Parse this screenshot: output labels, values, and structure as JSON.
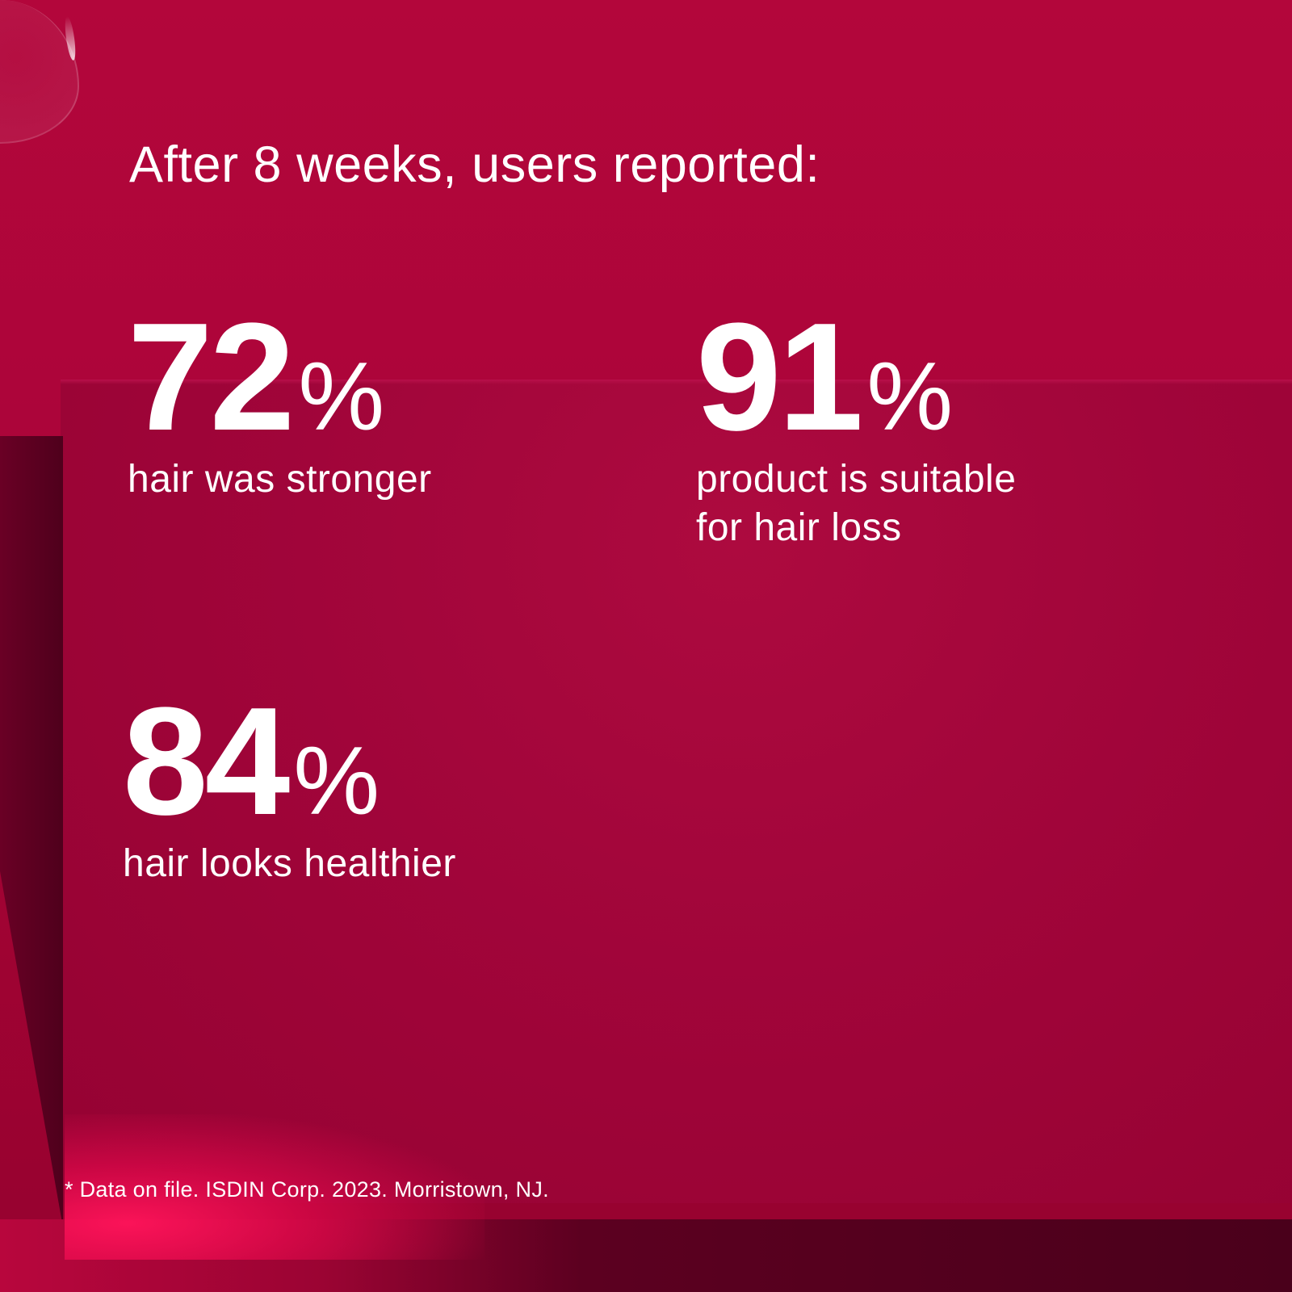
{
  "headline": "After 8 weeks, users reported:",
  "stats": [
    {
      "value": "72",
      "unit": "%",
      "label": "hair was stronger"
    },
    {
      "value": "91",
      "unit": "%",
      "label_lines": [
        "product is suitable",
        "for hair loss"
      ]
    },
    {
      "value": "84",
      "unit": "%",
      "label": "hair looks healthier"
    }
  ],
  "footnote": "* Data on file. ISDIN Corp. 2023. Morristown, NJ.",
  "colors": {
    "background": "#b0053a",
    "text": "#ffffff",
    "glow": "#ff1a5a"
  }
}
